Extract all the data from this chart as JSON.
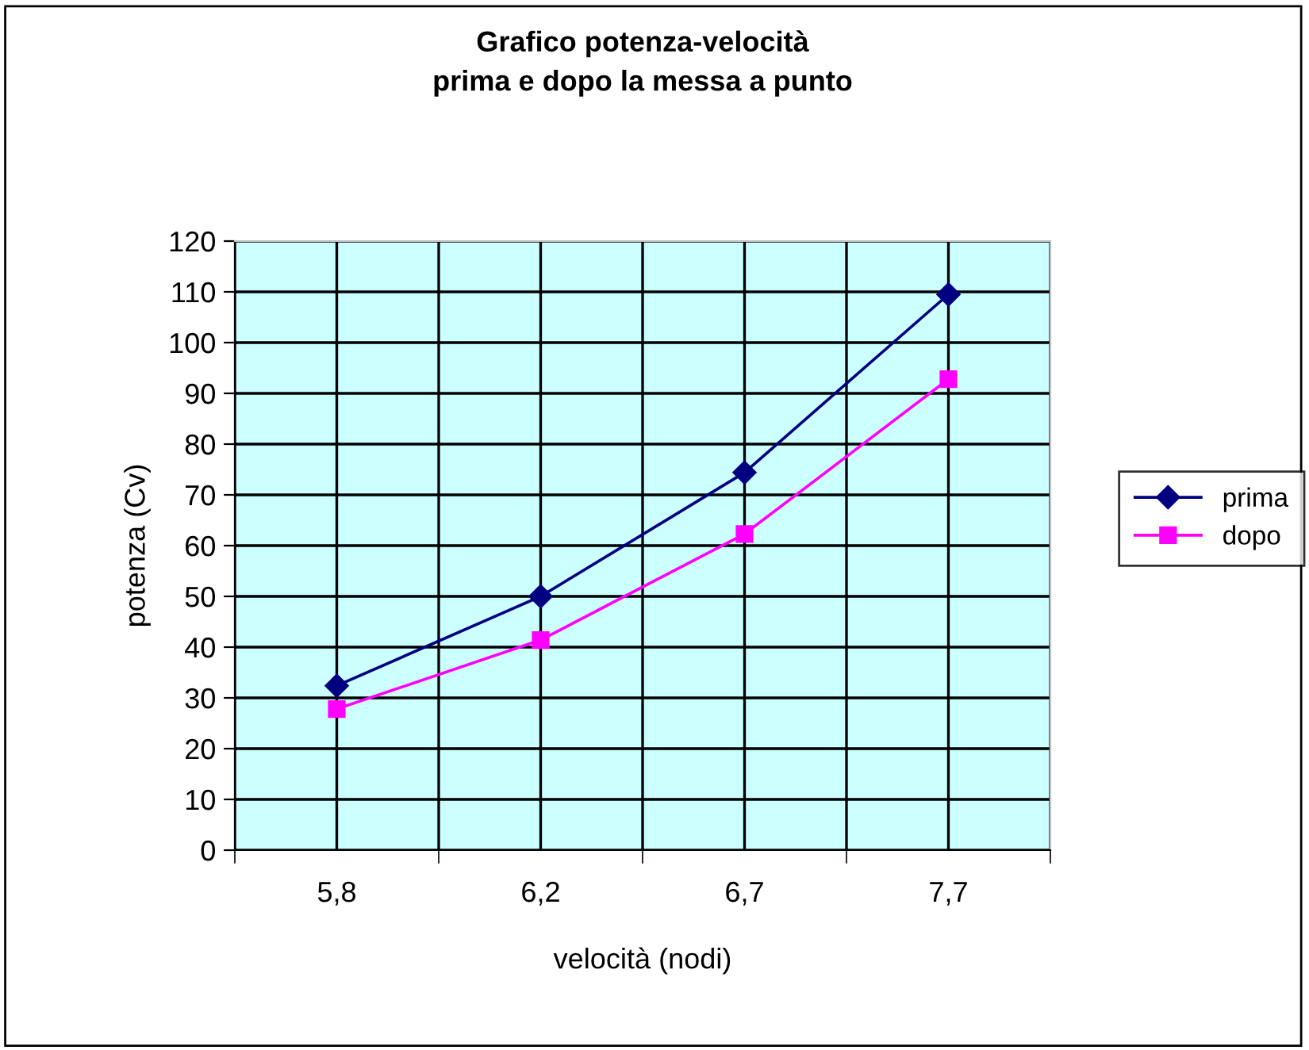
{
  "chart_data": {
    "type": "line",
    "title": "Grafico potenza-velocità\nprima e dopo la messa a punto",
    "xlabel": "velocità (nodi)",
    "ylabel": "potenza (Cv)",
    "categories": [
      "5,8",
      "6,2",
      "6,7",
      "7,7"
    ],
    "series": [
      {
        "name": "prima",
        "color": "#000080",
        "marker": "diamond",
        "values": [
          32.4,
          50,
          74.4,
          109.5
        ]
      },
      {
        "name": "dopo",
        "color": "#ff00ff",
        "marker": "square",
        "values": [
          27.8,
          41.4,
          62.3,
          92.8
        ]
      }
    ],
    "ylim": [
      0,
      120
    ],
    "yticks": [
      0,
      10,
      20,
      30,
      40,
      50,
      60,
      70,
      80,
      90,
      100,
      110,
      120
    ],
    "grid": true,
    "legend": "right",
    "line_style": "solid"
  }
}
